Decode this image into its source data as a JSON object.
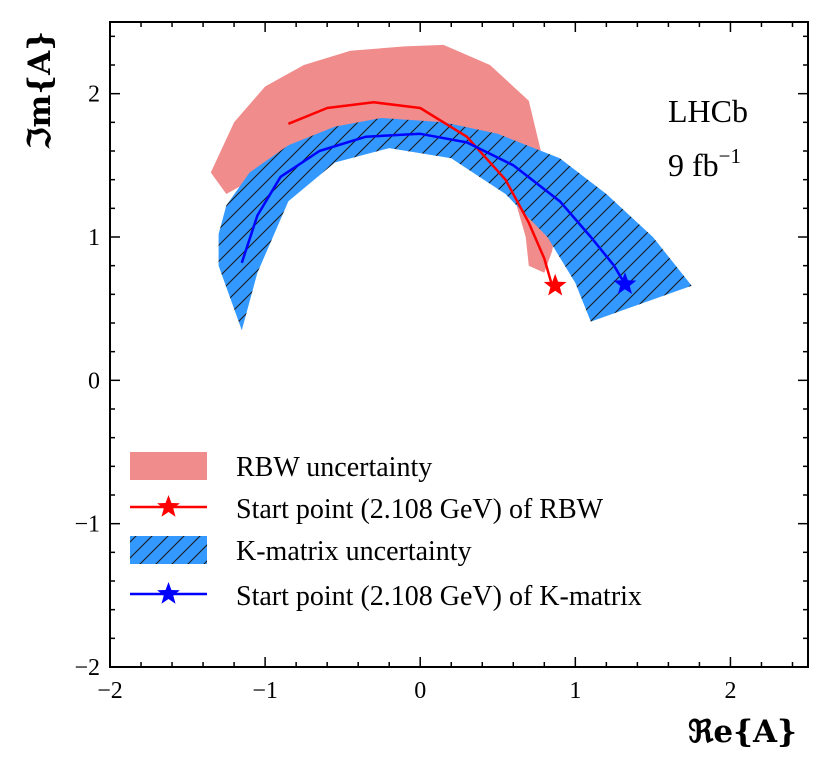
{
  "chart_data": {
    "type": "line",
    "title": "",
    "xlabel": "ℜe{A}",
    "ylabel": "ℑm{A}",
    "xlim": [
      -2,
      2.5
    ],
    "ylim": [
      -2,
      2.5
    ],
    "xticks": [
      -2,
      -1,
      0,
      1,
      2
    ],
    "yticks": [
      -2,
      -1,
      0,
      1,
      2
    ],
    "xtick_labels": [
      "−2",
      "−1",
      "0",
      "1",
      "2"
    ],
    "ytick_labels": [
      "−2",
      "−1",
      "0",
      "1",
      "2"
    ],
    "annotations": [
      "LHCb",
      "9 fb",
      "−1"
    ],
    "legend_position": "lower-left",
    "series": [
      {
        "name": "RBW uncertainty",
        "kind": "band",
        "color": "#f08c8c",
        "polygon": [
          [
            -1.35,
            1.45
          ],
          [
            -1.2,
            1.8
          ],
          [
            -1.0,
            2.05
          ],
          [
            -0.75,
            2.2
          ],
          [
            -0.45,
            2.3
          ],
          [
            -0.1,
            2.33
          ],
          [
            0.15,
            2.34
          ],
          [
            0.45,
            2.2
          ],
          [
            0.7,
            1.95
          ],
          [
            0.8,
            1.5
          ],
          [
            0.9,
            1.2
          ],
          [
            0.85,
            0.9
          ],
          [
            0.8,
            0.75
          ],
          [
            0.7,
            0.8
          ],
          [
            0.68,
            1.0
          ],
          [
            0.6,
            1.3
          ],
          [
            0.45,
            1.58
          ],
          [
            0.2,
            1.75
          ],
          [
            -0.1,
            1.8
          ],
          [
            -0.4,
            1.75
          ],
          [
            -0.7,
            1.62
          ],
          [
            -1.0,
            1.45
          ],
          [
            -1.25,
            1.3
          ]
        ]
      },
      {
        "name": "Start point (2.108 GeV) of RBW",
        "kind": "curve",
        "color": "#ff0000",
        "x": [
          -0.85,
          -0.6,
          -0.3,
          0.0,
          0.3,
          0.55,
          0.7,
          0.8,
          0.85
        ],
        "y": [
          1.79,
          1.9,
          1.94,
          1.9,
          1.7,
          1.4,
          1.1,
          0.85,
          0.66
        ],
        "marker": {
          "x": 0.87,
          "y": 0.66
        }
      },
      {
        "name": "K-matrix uncertainty",
        "kind": "band",
        "color": "#3399ff",
        "hatch": true,
        "polygon": [
          [
            -1.3,
            1.02
          ],
          [
            -1.25,
            1.22
          ],
          [
            -1.1,
            1.45
          ],
          [
            -0.85,
            1.64
          ],
          [
            -0.55,
            1.77
          ],
          [
            -0.25,
            1.83
          ],
          [
            0.15,
            1.8
          ],
          [
            0.5,
            1.72
          ],
          [
            0.9,
            1.55
          ],
          [
            1.2,
            1.3
          ],
          [
            1.5,
            1.0
          ],
          [
            1.75,
            0.66
          ],
          [
            1.1,
            0.41
          ],
          [
            1.0,
            0.68
          ],
          [
            0.82,
            1.0
          ],
          [
            0.55,
            1.3
          ],
          [
            0.2,
            1.55
          ],
          [
            -0.2,
            1.62
          ],
          [
            -0.55,
            1.52
          ],
          [
            -0.85,
            1.25
          ],
          [
            -1.05,
            0.75
          ],
          [
            -1.15,
            0.35
          ],
          [
            -1.3,
            0.8
          ]
        ]
      },
      {
        "name": "Start point (2.108 GeV) of K-matrix",
        "kind": "curve",
        "color": "#0000ff",
        "x": [
          -1.15,
          -1.05,
          -0.9,
          -0.65,
          -0.35,
          0.0,
          0.3,
          0.6,
          0.9,
          1.1,
          1.25,
          1.32
        ],
        "y": [
          0.82,
          1.15,
          1.42,
          1.6,
          1.7,
          1.72,
          1.66,
          1.5,
          1.25,
          1.0,
          0.8,
          0.67
        ],
        "marker": {
          "x": 1.32,
          "y": 0.67
        }
      }
    ]
  },
  "colors": {
    "axis": "#000000",
    "rbw_band": "#f08c8c",
    "rbw_line": "#ff0000",
    "kmatrix_band": "#3399ff",
    "kmatrix_line": "#0000ff"
  }
}
